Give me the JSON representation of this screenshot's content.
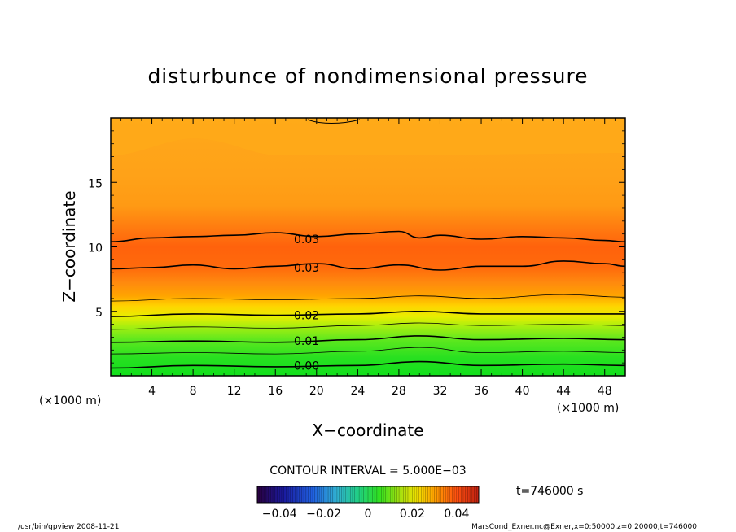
{
  "chart_data": {
    "type": "contour",
    "title": "disturbunce of nondimensional pressure",
    "xlabel": "X−coordinate",
    "ylabel": "Z−coordinate",
    "x_unit_left": "(×1000 m)",
    "x_unit_right": "(×1000 m)",
    "xlim": [
      0,
      50
    ],
    "ylim": [
      0,
      20
    ],
    "x_ticks": [
      4,
      8,
      12,
      16,
      20,
      24,
      28,
      32,
      36,
      40,
      44,
      48
    ],
    "x_tick_labels": [
      "4",
      "8",
      "12",
      "16",
      "20",
      "24",
      "28",
      "32",
      "36",
      "40",
      "44",
      "48"
    ],
    "y_ticks": [
      5,
      10,
      15
    ],
    "y_tick_labels": [
      "5",
      "10",
      "15"
    ],
    "contour_interval_text": "CONTOUR INTERVAL = 5.000E−03",
    "time_text": "t=746000 s",
    "colorbar": {
      "min": -0.05,
      "max": 0.05,
      "ticks": [
        -0.04,
        -0.02,
        0,
        0.02,
        0.04
      ],
      "tick_labels": [
        "−0.04",
        "−0.02",
        "0",
        "0.02",
        "0.04"
      ]
    },
    "contour_labels": [
      {
        "text": "0.03",
        "x": 17.8,
        "z": 10.6
      },
      {
        "text": "0.03",
        "x": 17.8,
        "z": 8.4
      },
      {
        "text": "0.02",
        "x": 17.8,
        "z": 4.7
      },
      {
        "text": "0.01",
        "x": 17.8,
        "z": 2.7
      },
      {
        "text": "0.00",
        "x": 17.8,
        "z": 0.8
      }
    ],
    "contours": [
      {
        "level": 0.0,
        "bold": true,
        "x": [
          0,
          8,
          16,
          24,
          30,
          36,
          44,
          50
        ],
        "z": [
          0.6,
          0.8,
          0.7,
          0.8,
          1.1,
          0.8,
          0.9,
          0.8
        ]
      },
      {
        "level": 0.005,
        "bold": false,
        "x": [
          0,
          8,
          16,
          24,
          30,
          36,
          44,
          50
        ],
        "z": [
          1.7,
          1.8,
          1.7,
          1.9,
          2.2,
          1.8,
          1.9,
          1.8
        ]
      },
      {
        "level": 0.01,
        "bold": true,
        "x": [
          0,
          8,
          16,
          24,
          30,
          36,
          44,
          50
        ],
        "z": [
          2.6,
          2.7,
          2.6,
          2.8,
          3.1,
          2.8,
          2.9,
          2.8
        ]
      },
      {
        "level": 0.015,
        "bold": false,
        "x": [
          0,
          8,
          16,
          24,
          30,
          36,
          44,
          50
        ],
        "z": [
          3.6,
          3.8,
          3.7,
          3.9,
          4.1,
          3.9,
          4.0,
          3.9
        ]
      },
      {
        "level": 0.02,
        "bold": true,
        "x": [
          0,
          8,
          16,
          24,
          30,
          36,
          44,
          50
        ],
        "z": [
          4.6,
          4.8,
          4.7,
          4.8,
          5.0,
          4.8,
          4.8,
          4.8
        ]
      },
      {
        "level": 0.025,
        "bold": false,
        "x": [
          0,
          8,
          16,
          24,
          30,
          36,
          44,
          50
        ],
        "z": [
          5.8,
          6.0,
          5.9,
          6.0,
          6.2,
          6.0,
          6.3,
          6.1
        ]
      },
      {
        "level": 0.03,
        "bold": true,
        "x": [
          0,
          4,
          8,
          12,
          16,
          20,
          24,
          28,
          32,
          36,
          40,
          44,
          48,
          50
        ],
        "z": [
          8.3,
          8.4,
          8.6,
          8.3,
          8.5,
          8.7,
          8.3,
          8.6,
          8.2,
          8.5,
          8.5,
          8.9,
          8.7,
          8.5
        ]
      },
      {
        "level": 0.03,
        "bold": true,
        "x": [
          0,
          4,
          8,
          12,
          16,
          20,
          24,
          28,
          30,
          32,
          36,
          40,
          44,
          48,
          50
        ],
        "z": [
          10.4,
          10.7,
          10.8,
          10.9,
          11.1,
          10.8,
          11.0,
          11.2,
          10.7,
          10.9,
          10.6,
          10.8,
          10.7,
          10.5,
          10.4
        ]
      }
    ]
  },
  "footer": {
    "left": "/usr/bin/gpview   2008-11-21",
    "right": "MarsCond_Exner.nc@Exner,x=0:50000,z=0:20000,t=746000"
  }
}
